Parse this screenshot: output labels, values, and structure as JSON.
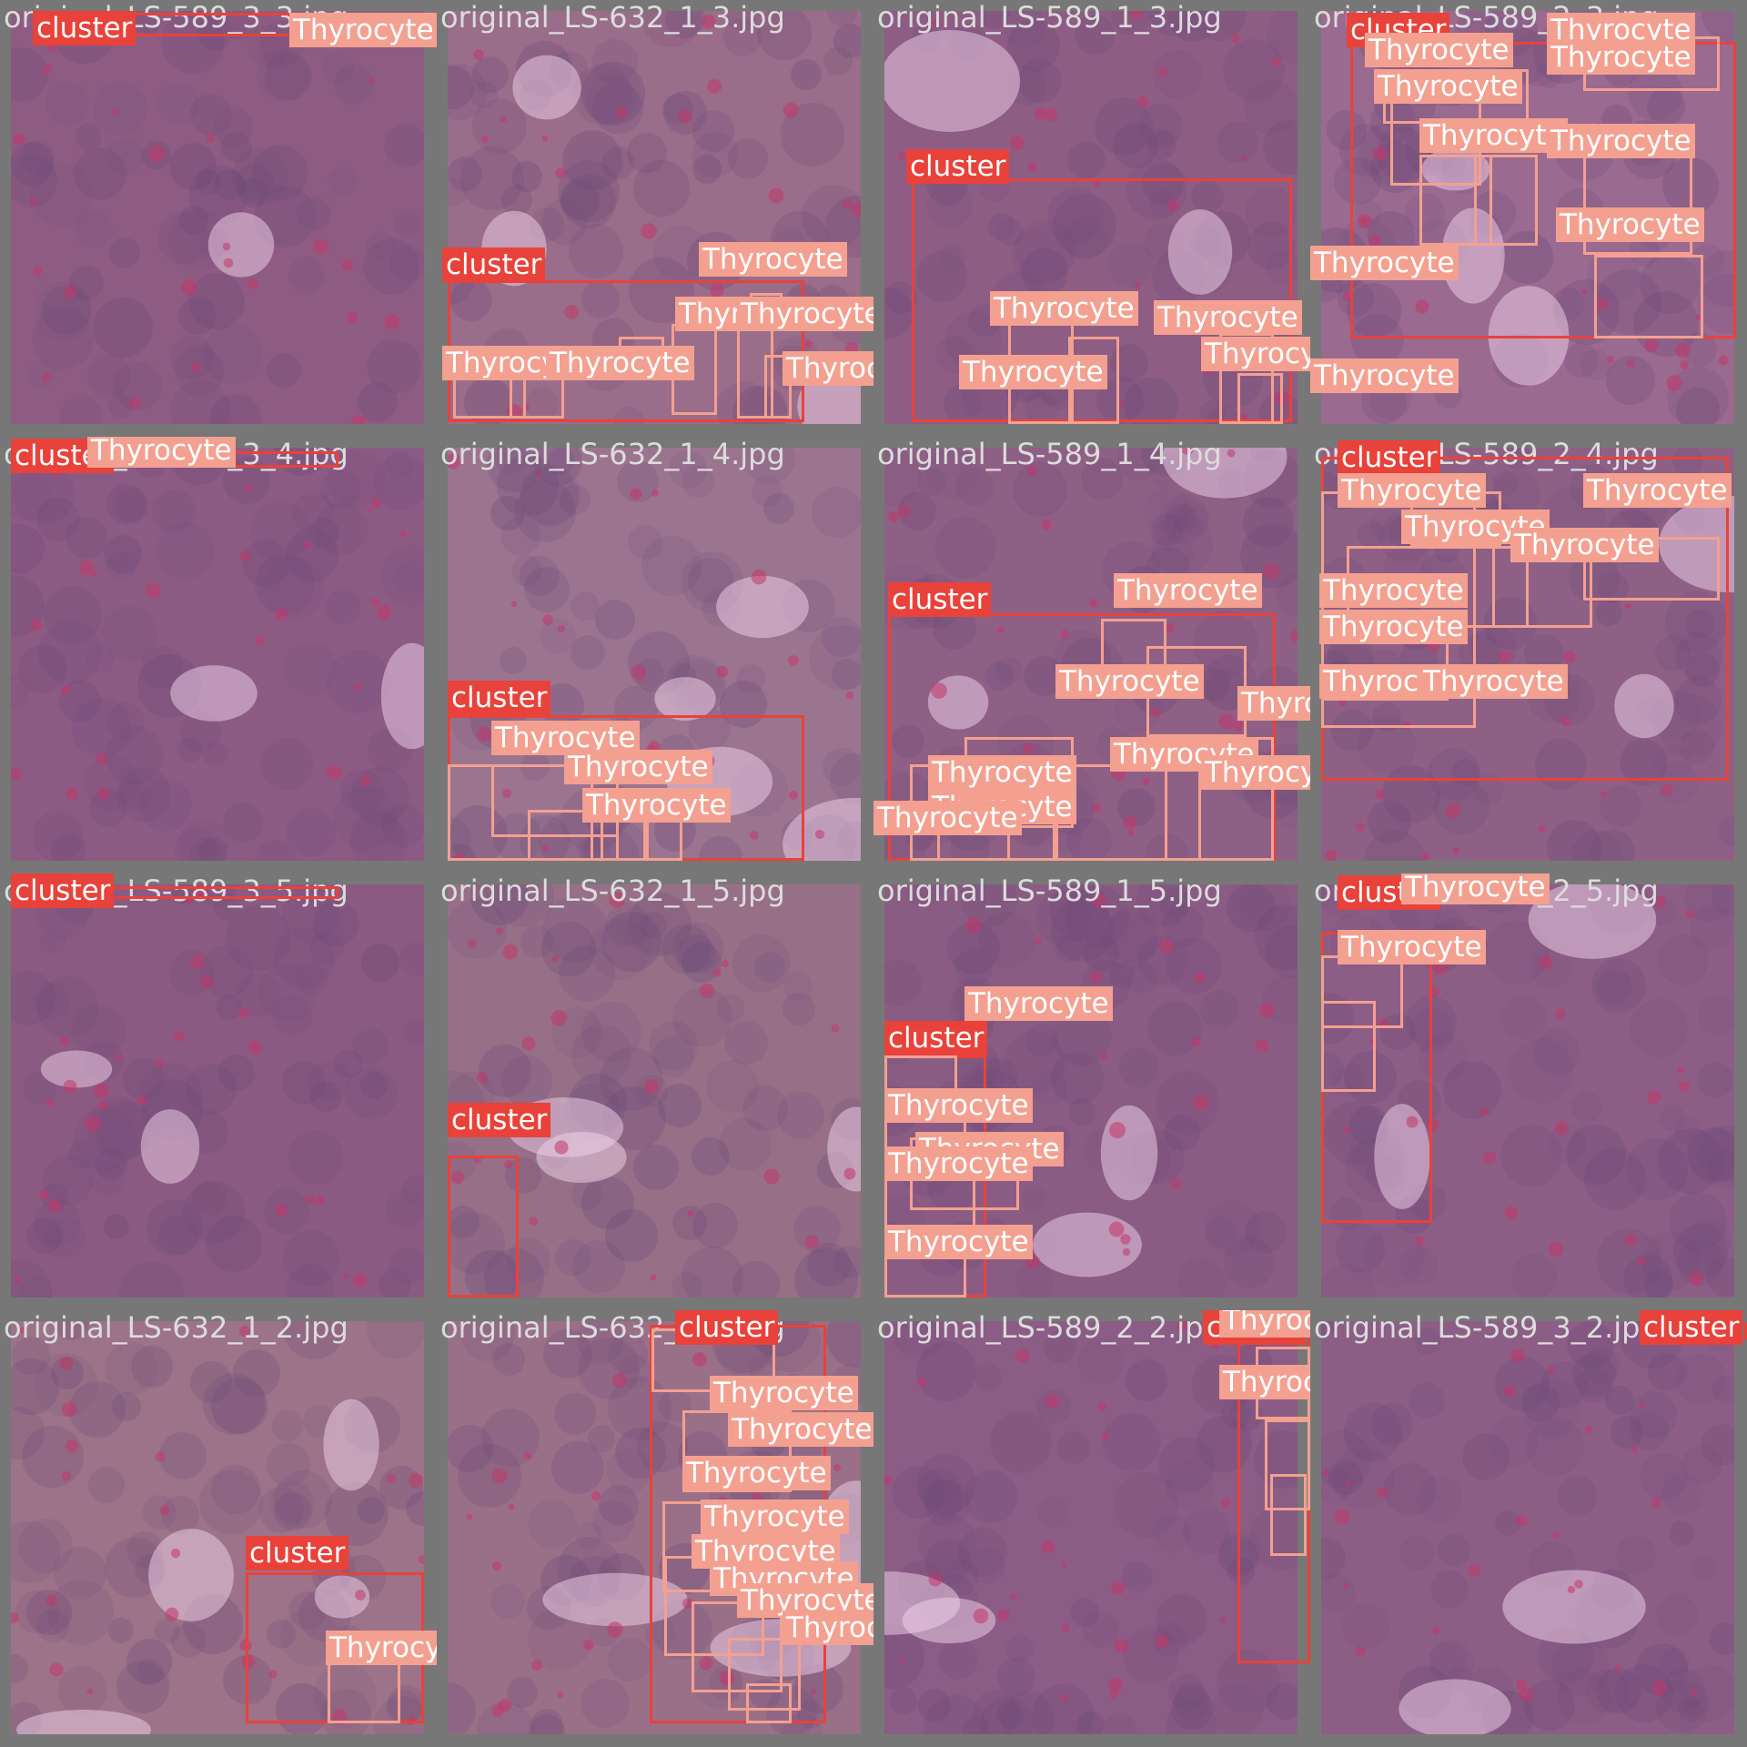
{
  "colors": {
    "cluster": "#e8423a",
    "thyrocyte": "#f4a090",
    "filename_text": "#dcdcdc",
    "grid_gap": "#7a7a7a"
  },
  "label_names": {
    "cluster": "cluster",
    "thyrocyte": "Thyrocyte"
  },
  "tiles": [
    {
      "name": "original_LS-589_3_3.jpg",
      "tone": "#8e5c83",
      "bright": 0.2
    },
    {
      "name": "original_LS-632_1_3.jpg",
      "tone": "#9a6d8a",
      "bright": 0.5
    },
    {
      "name": "original_LS-589_1_3.jpg",
      "tone": "#8d5d84",
      "bright": 0.35
    },
    {
      "name": "original_LS-589_2_3.jpg",
      "tone": "#9a6a90",
      "bright": 0.55
    },
    {
      "name": "original_LS-589_3_4.jpg",
      "tone": "#8c5b84",
      "bright": 0.25
    },
    {
      "name": "original_LS-632_1_4.jpg",
      "tone": "#9b7590",
      "bright": 0.6
    },
    {
      "name": "original_LS-589_1_4.jpg",
      "tone": "#8f6086",
      "bright": 0.3
    },
    {
      "name": "original_LS-589_2_4.jpg",
      "tone": "#8e6086",
      "bright": 0.35
    },
    {
      "name": "original_LS-589_3_5.jpg",
      "tone": "#8a5a82",
      "bright": 0.25
    },
    {
      "name": "original_LS-632_1_5.jpg",
      "tone": "#977088",
      "bright": 0.55
    },
    {
      "name": "original_LS-589_1_5.jpg",
      "tone": "#8a5c84",
      "bright": 0.3
    },
    {
      "name": "original_LS-589_2_5.jpg",
      "tone": "#8c5e86",
      "bright": 0.3
    },
    {
      "name": "original_LS-632_1_2.jpg",
      "tone": "#9c7388",
      "bright": 0.6
    },
    {
      "name": "original_LS-632_2_2.jpg",
      "tone": "#9a7089",
      "bright": 0.55
    },
    {
      "name": "original_LS-589_2_2.jpg",
      "tone": "#8b5c85",
      "bright": 0.3
    },
    {
      "name": "original_LS-589_3_2.jpg",
      "tone": "#8c5e86",
      "bright": 0.35
    }
  ]
}
